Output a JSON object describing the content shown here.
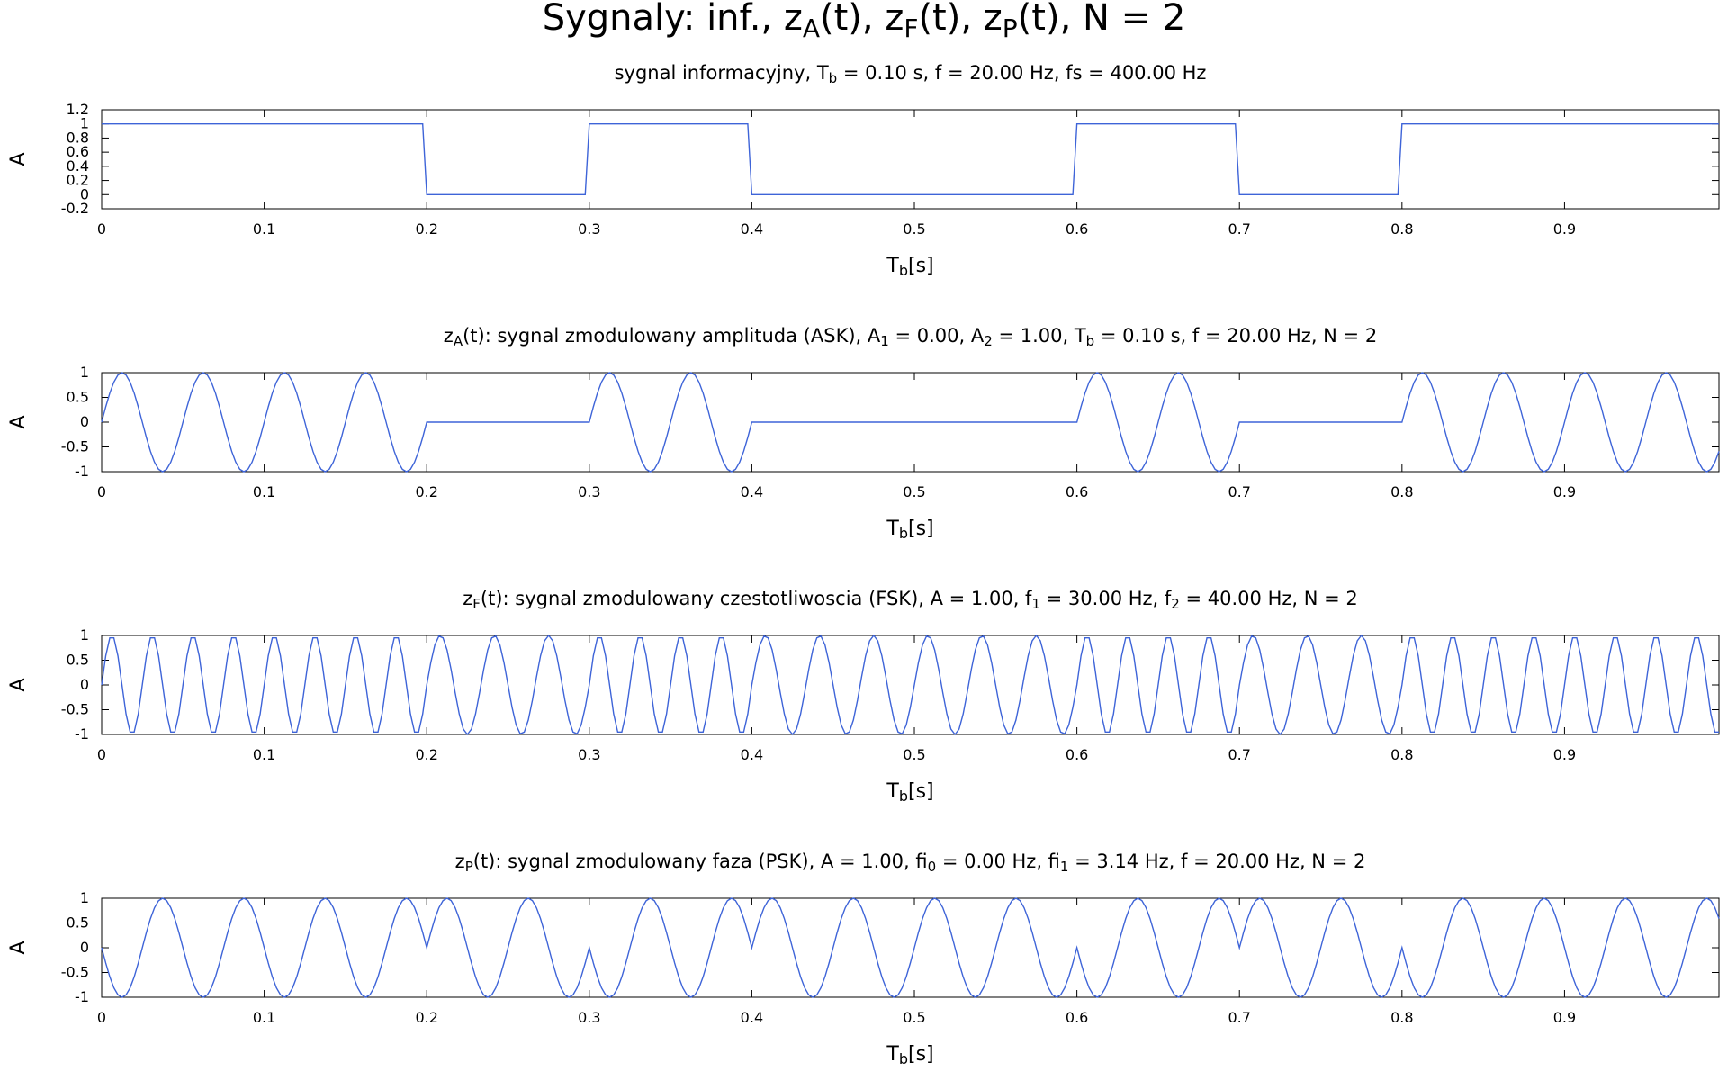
{
  "title": {
    "prefix": "Sygnaly: inf., z",
    "s1": "A",
    "mid1": "(t), z",
    "s2": "F",
    "mid2": "(t), z",
    "s3": "P",
    "suffix": "(t), N = 2"
  },
  "chart_data": [
    {
      "type": "line",
      "title_parts": [
        {
          "t": "sygnal informacyjny, T"
        },
        {
          "t": "b",
          "sub": true
        },
        {
          "t": " = 0.10 s, f = 20.00 Hz, fs = 400.00 Hz"
        }
      ],
      "xlabel": "Tb[s]",
      "xlabel_main": "T",
      "xlabel_sub": "b",
      "xlabel_rest": "[s]",
      "ylabel": "A",
      "xlim": [
        0,
        0.995
      ],
      "ylim": [
        -0.2,
        1.2
      ],
      "xticks": [
        "0",
        "0.1",
        "0.2",
        "0.3",
        "0.4",
        "0.5",
        "0.6",
        "0.7",
        "0.8",
        "0.9"
      ],
      "yticks": [
        "-0.2",
        "0",
        "0.2",
        "0.4",
        "0.6",
        "0.8",
        "1",
        "1.2"
      ],
      "bits": [
        1,
        1,
        0,
        1,
        0,
        0,
        1,
        0,
        1,
        1
      ],
      "bit_duration": 0.1,
      "fs": 400,
      "signal": "bits",
      "color": "#3e64d8"
    },
    {
      "type": "line",
      "title_parts": [
        {
          "t": "z"
        },
        {
          "t": "A",
          "sub": true
        },
        {
          "t": "(t): sygnal zmodulowany amplituda (ASK), A"
        },
        {
          "t": "1",
          "sub": true
        },
        {
          "t": " = 0.00, A"
        },
        {
          "t": "2",
          "sub": true
        },
        {
          "t": " = 1.00, T"
        },
        {
          "t": "b",
          "sub": true
        },
        {
          "t": " = 0.10 s, f = 20.00 Hz, N = 2"
        }
      ],
      "xlabel": "Tb[s]",
      "xlabel_main": "T",
      "xlabel_sub": "b",
      "xlabel_rest": "[s]",
      "ylabel": "A",
      "xlim": [
        0,
        0.995
      ],
      "ylim": [
        -1,
        1
      ],
      "xticks": [
        "0",
        "0.1",
        "0.2",
        "0.3",
        "0.4",
        "0.5",
        "0.6",
        "0.7",
        "0.8",
        "0.9"
      ],
      "yticks": [
        "-1",
        "-0.5",
        "0",
        "0.5",
        "1"
      ],
      "bits": [
        1,
        1,
        0,
        1,
        0,
        0,
        1,
        0,
        1,
        1
      ],
      "bit_duration": 0.1,
      "fs": 400,
      "signal": "ask",
      "A1": 0.0,
      "A2": 1.0,
      "f": 20.0,
      "color": "#3e64d8"
    },
    {
      "type": "line",
      "title_parts": [
        {
          "t": "z"
        },
        {
          "t": "F",
          "sub": true
        },
        {
          "t": "(t): sygnal zmodulowany czestotliwoscia (FSK), A = 1.00, f"
        },
        {
          "t": "1",
          "sub": true
        },
        {
          "t": " = 30.00 Hz, f"
        },
        {
          "t": "2",
          "sub": true
        },
        {
          "t": " = 40.00 Hz, N = 2"
        }
      ],
      "xlabel": "Tb[s]",
      "xlabel_main": "T",
      "xlabel_sub": "b",
      "xlabel_rest": "[s]",
      "ylabel": "A",
      "xlim": [
        0,
        0.995
      ],
      "ylim": [
        -1,
        1
      ],
      "xticks": [
        "0",
        "0.1",
        "0.2",
        "0.3",
        "0.4",
        "0.5",
        "0.6",
        "0.7",
        "0.8",
        "0.9"
      ],
      "yticks": [
        "-1",
        "-0.5",
        "0",
        "0.5",
        "1"
      ],
      "bits": [
        1,
        1,
        0,
        1,
        0,
        0,
        1,
        0,
        1,
        1
      ],
      "bit_duration": 0.1,
      "fs": 400,
      "signal": "fsk",
      "A": 1.0,
      "f1": 30.0,
      "f2": 40.0,
      "color": "#3e64d8"
    },
    {
      "type": "line",
      "title_parts": [
        {
          "t": "z"
        },
        {
          "t": "P",
          "sub": true
        },
        {
          "t": "(t): sygnal zmodulowany faza (PSK), A = 1.00, fi"
        },
        {
          "t": "0",
          "sub": true
        },
        {
          "t": " = 0.00 Hz, fi"
        },
        {
          "t": "1",
          "sub": true
        },
        {
          "t": " = 3.14 Hz, f = 20.00 Hz, N = 2"
        }
      ],
      "xlabel": "Tb[s]",
      "xlabel_main": "T",
      "xlabel_sub": "b",
      "xlabel_rest": "[s]",
      "ylabel": "A",
      "xlim": [
        0,
        0.995
      ],
      "ylim": [
        -1,
        1
      ],
      "xticks": [
        "0",
        "0.1",
        "0.2",
        "0.3",
        "0.4",
        "0.5",
        "0.6",
        "0.7",
        "0.8",
        "0.9"
      ],
      "yticks": [
        "-1",
        "-0.5",
        "0",
        "0.5",
        "1"
      ],
      "bits": [
        1,
        1,
        0,
        1,
        0,
        0,
        1,
        0,
        1,
        1
      ],
      "bit_duration": 0.1,
      "fs": 400,
      "signal": "psk",
      "A": 1.0,
      "fi0": 0.0,
      "fi1": 3.14,
      "f": 20.0,
      "color": "#3e64d8"
    }
  ]
}
